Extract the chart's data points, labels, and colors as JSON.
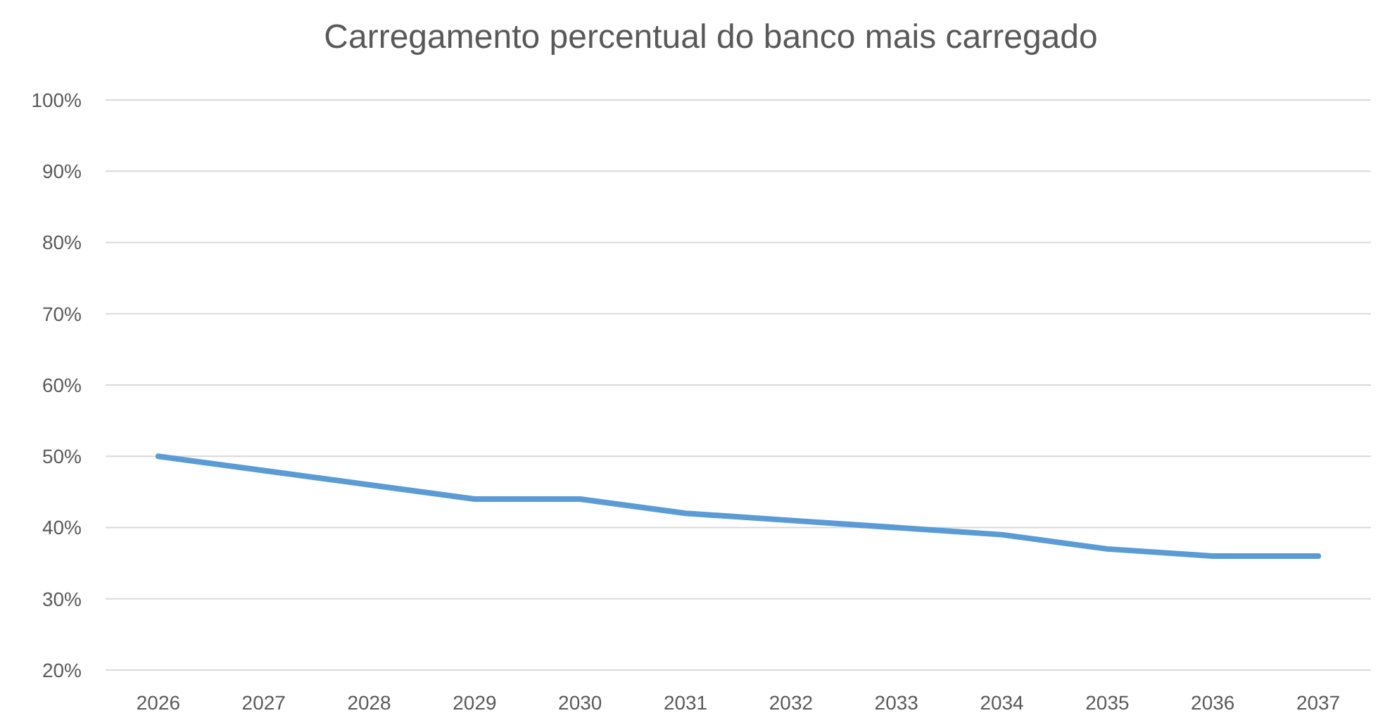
{
  "chart_data": {
    "type": "line",
    "title": "Carregamento percentual do banco mais carregado",
    "categories": [
      "2026",
      "2027",
      "2028",
      "2029",
      "2030",
      "2031",
      "2032",
      "2033",
      "2034",
      "2035",
      "2036",
      "2037"
    ],
    "series": [
      {
        "color": "#5b9bd5",
        "values": [
          50,
          48,
          46,
          44,
          44,
          42,
          41,
          40,
          39,
          37,
          36,
          36
        ]
      }
    ],
    "ylim": [
      20,
      100
    ],
    "yticks": [
      {
        "value": 20,
        "label": "20%"
      },
      {
        "value": 30,
        "label": "30%"
      },
      {
        "value": 40,
        "label": "40%"
      },
      {
        "value": 50,
        "label": "50%"
      },
      {
        "value": 60,
        "label": "60%"
      },
      {
        "value": 70,
        "label": "70%"
      },
      {
        "value": 80,
        "label": "80%"
      },
      {
        "value": 90,
        "label": "90%"
      },
      {
        "value": 100,
        "label": "100%"
      }
    ],
    "grid": "y",
    "marker": "none",
    "line_style": "solid"
  }
}
